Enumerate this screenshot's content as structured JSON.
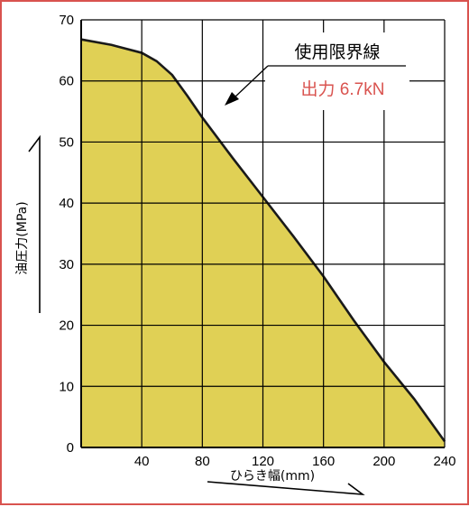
{
  "chart_data": {
    "type": "area",
    "xlabel": "ひらき幅(mm)",
    "ylabel": "油圧力(MPa)",
    "xlim": [
      0,
      240
    ],
    "ylim": [
      0,
      70
    ],
    "x_ticks": [
      40,
      80,
      120,
      160,
      200,
      240
    ],
    "y_ticks": [
      0,
      10,
      20,
      30,
      40,
      50,
      60,
      70
    ],
    "grid": true,
    "fill_color": "#e0d055",
    "line_color": "#1a1a1a",
    "grid_color": "#000000",
    "annotation": {
      "line1": "使用限界線",
      "line2": "出力 6.7kN",
      "line2_color": "#d9534f"
    },
    "x": [
      0,
      20,
      40,
      50,
      60,
      70,
      80,
      100,
      120,
      140,
      160,
      180,
      200,
      220,
      240
    ],
    "values": [
      66.8,
      65.9,
      64.6,
      63.2,
      61.0,
      57.6,
      54.0,
      47.4,
      41.0,
      34.6,
      28.0,
      20.8,
      14.0,
      7.9,
      1.0
    ]
  }
}
